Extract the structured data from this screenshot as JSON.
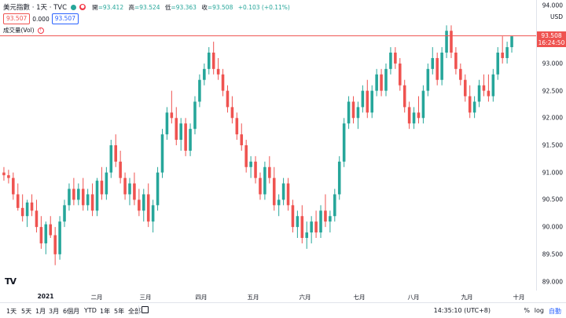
{
  "header": {
    "symbol": "美元指數 · 1天 · TVC",
    "ohlc": [
      {
        "label": "開",
        "value": "=93.412"
      },
      {
        "label": "高",
        "value": "=93.524"
      },
      {
        "label": "低",
        "value": "=93.363"
      },
      {
        "label": "收",
        "value": "=93.508"
      }
    ],
    "change": "+0.103 (+0.11%)",
    "bid": "93.507",
    "spread": "0.000",
    "ask": "93.507",
    "volume_label": "成交量(Vol)",
    "status_color": "#26a69a"
  },
  "price_axis": {
    "unit": "USD",
    "ticks": [
      "94.000",
      "93.000",
      "92.500",
      "92.000",
      "91.500",
      "91.000",
      "90.500",
      "90.000",
      "89.500",
      "89.000"
    ],
    "last_price": "93.508",
    "countdown": "16:24:50",
    "last_price_color": "#ef5350"
  },
  "time_axis": {
    "ticks": [
      "2021",
      "二月",
      "三月",
      "四月",
      "五月",
      "六月",
      "七月",
      "八月",
      "九月",
      "十月"
    ]
  },
  "bottom_bar": {
    "ranges": [
      "1天",
      "5天",
      "1月",
      "3月",
      "6個月",
      "YTD",
      "1年",
      "5年",
      "全部"
    ],
    "timestamp": "14:35:10 (UTC+8)",
    "percent": "%",
    "log": "log",
    "auto": "自動"
  },
  "colors": {
    "up": "#26a69a",
    "down": "#ef5350"
  },
  "chart_data": {
    "type": "candlestick",
    "ylim": [
      88.95,
      94.05
    ],
    "candles": [
      {
        "o": 91.0,
        "h": 91.1,
        "l": 90.85,
        "c": 90.95
      },
      {
        "o": 90.95,
        "h": 91.05,
        "l": 90.8,
        "c": 90.9
      },
      {
        "o": 90.9,
        "h": 91.0,
        "l": 90.5,
        "c": 90.6
      },
      {
        "o": 90.6,
        "h": 90.8,
        "l": 90.3,
        "c": 90.35
      },
      {
        "o": 90.35,
        "h": 90.6,
        "l": 90.1,
        "c": 90.2
      },
      {
        "o": 90.2,
        "h": 90.5,
        "l": 90.0,
        "c": 90.45
      },
      {
        "o": 90.45,
        "h": 90.6,
        "l": 90.2,
        "c": 90.3
      },
      {
        "o": 90.3,
        "h": 90.5,
        "l": 89.9,
        "c": 90.0
      },
      {
        "o": 90.0,
        "h": 90.2,
        "l": 89.6,
        "c": 89.7
      },
      {
        "o": 89.7,
        "h": 90.1,
        "l": 89.5,
        "c": 90.05
      },
      {
        "o": 90.05,
        "h": 90.2,
        "l": 89.8,
        "c": 89.85
      },
      {
        "o": 89.85,
        "h": 90.0,
        "l": 89.3,
        "c": 89.5
      },
      {
        "o": 89.5,
        "h": 90.2,
        "l": 89.4,
        "c": 90.1
      },
      {
        "o": 90.1,
        "h": 90.5,
        "l": 90.0,
        "c": 90.4
      },
      {
        "o": 90.4,
        "h": 90.8,
        "l": 90.3,
        "c": 90.7
      },
      {
        "o": 90.7,
        "h": 90.9,
        "l": 90.4,
        "c": 90.5
      },
      {
        "o": 90.5,
        "h": 90.8,
        "l": 90.4,
        "c": 90.7
      },
      {
        "o": 90.7,
        "h": 90.9,
        "l": 90.3,
        "c": 90.4
      },
      {
        "o": 90.4,
        "h": 90.7,
        "l": 90.3,
        "c": 90.6
      },
      {
        "o": 90.6,
        "h": 90.8,
        "l": 90.2,
        "c": 90.3
      },
      {
        "o": 90.3,
        "h": 90.9,
        "l": 90.2,
        "c": 90.85
      },
      {
        "o": 90.85,
        "h": 91.1,
        "l": 90.5,
        "c": 90.6
      },
      {
        "o": 90.6,
        "h": 91.1,
        "l": 90.5,
        "c": 91.0
      },
      {
        "o": 91.0,
        "h": 91.6,
        "l": 90.9,
        "c": 91.5
      },
      {
        "o": 91.5,
        "h": 91.7,
        "l": 91.1,
        "c": 91.2
      },
      {
        "o": 91.2,
        "h": 91.4,
        "l": 90.8,
        "c": 90.9
      },
      {
        "o": 90.9,
        "h": 91.0,
        "l": 90.5,
        "c": 90.6
      },
      {
        "o": 90.6,
        "h": 90.9,
        "l": 90.4,
        "c": 90.8
      },
      {
        "o": 90.8,
        "h": 91.0,
        "l": 90.4,
        "c": 90.5
      },
      {
        "o": 90.5,
        "h": 90.7,
        "l": 90.2,
        "c": 90.3
      },
      {
        "o": 90.3,
        "h": 90.7,
        "l": 90.1,
        "c": 90.6
      },
      {
        "o": 90.6,
        "h": 90.8,
        "l": 90.0,
        "c": 90.1
      },
      {
        "o": 90.1,
        "h": 90.5,
        "l": 89.9,
        "c": 90.4
      },
      {
        "o": 90.4,
        "h": 91.1,
        "l": 90.3,
        "c": 91.0
      },
      {
        "o": 91.0,
        "h": 91.8,
        "l": 90.9,
        "c": 91.7
      },
      {
        "o": 91.7,
        "h": 92.2,
        "l": 91.6,
        "c": 92.1
      },
      {
        "o": 92.1,
        "h": 92.5,
        "l": 91.9,
        "c": 92.0
      },
      {
        "o": 92.0,
        "h": 92.2,
        "l": 91.5,
        "c": 91.6
      },
      {
        "o": 91.6,
        "h": 92.0,
        "l": 91.4,
        "c": 91.9
      },
      {
        "o": 91.9,
        "h": 92.0,
        "l": 91.3,
        "c": 91.4
      },
      {
        "o": 91.4,
        "h": 91.9,
        "l": 91.3,
        "c": 91.8
      },
      {
        "o": 91.8,
        "h": 92.4,
        "l": 91.7,
        "c": 92.3
      },
      {
        "o": 92.3,
        "h": 92.8,
        "l": 92.2,
        "c": 92.7
      },
      {
        "o": 92.7,
        "h": 93.0,
        "l": 92.6,
        "c": 92.9
      },
      {
        "o": 92.9,
        "h": 93.3,
        "l": 92.8,
        "c": 93.2
      },
      {
        "o": 93.2,
        "h": 93.4,
        "l": 92.8,
        "c": 92.9
      },
      {
        "o": 92.9,
        "h": 93.1,
        "l": 92.7,
        "c": 92.8
      },
      {
        "o": 92.8,
        "h": 92.9,
        "l": 92.4,
        "c": 92.5
      },
      {
        "o": 92.5,
        "h": 92.6,
        "l": 92.1,
        "c": 92.2
      },
      {
        "o": 92.2,
        "h": 92.4,
        "l": 91.9,
        "c": 92.0
      },
      {
        "o": 92.0,
        "h": 92.1,
        "l": 91.6,
        "c": 91.7
      },
      {
        "o": 91.7,
        "h": 91.9,
        "l": 91.4,
        "c": 91.5
      },
      {
        "o": 91.5,
        "h": 91.6,
        "l": 91.0,
        "c": 91.1
      },
      {
        "o": 91.1,
        "h": 91.3,
        "l": 90.9,
        "c": 91.2
      },
      {
        "o": 91.2,
        "h": 91.3,
        "l": 90.8,
        "c": 90.9
      },
      {
        "o": 90.9,
        "h": 91.0,
        "l": 90.5,
        "c": 90.6
      },
      {
        "o": 90.6,
        "h": 91.2,
        "l": 90.5,
        "c": 91.1
      },
      {
        "o": 91.1,
        "h": 91.3,
        "l": 90.8,
        "c": 90.9
      },
      {
        "o": 90.9,
        "h": 91.1,
        "l": 90.3,
        "c": 90.4
      },
      {
        "o": 90.4,
        "h": 90.6,
        "l": 90.2,
        "c": 90.5
      },
      {
        "o": 90.5,
        "h": 90.9,
        "l": 90.4,
        "c": 90.8
      },
      {
        "o": 90.8,
        "h": 90.9,
        "l": 90.3,
        "c": 90.4
      },
      {
        "o": 90.4,
        "h": 90.5,
        "l": 89.9,
        "c": 90.0
      },
      {
        "o": 90.0,
        "h": 90.3,
        "l": 89.8,
        "c": 90.2
      },
      {
        "o": 90.2,
        "h": 90.4,
        "l": 89.7,
        "c": 89.8
      },
      {
        "o": 89.8,
        "h": 90.1,
        "l": 89.6,
        "c": 89.9
      },
      {
        "o": 89.9,
        "h": 90.2,
        "l": 89.7,
        "c": 90.1
      },
      {
        "o": 90.1,
        "h": 90.3,
        "l": 89.8,
        "c": 89.9
      },
      {
        "o": 89.9,
        "h": 90.4,
        "l": 89.8,
        "c": 90.3
      },
      {
        "o": 90.3,
        "h": 90.6,
        "l": 90.0,
        "c": 90.1
      },
      {
        "o": 90.1,
        "h": 90.3,
        "l": 89.9,
        "c": 90.2
      },
      {
        "o": 90.2,
        "h": 90.7,
        "l": 90.1,
        "c": 90.6
      },
      {
        "o": 90.6,
        "h": 91.3,
        "l": 90.5,
        "c": 91.2
      },
      {
        "o": 91.2,
        "h": 92.0,
        "l": 91.1,
        "c": 91.9
      },
      {
        "o": 91.9,
        "h": 92.4,
        "l": 91.8,
        "c": 92.3
      },
      {
        "o": 92.3,
        "h": 92.4,
        "l": 91.9,
        "c": 92.0
      },
      {
        "o": 92.0,
        "h": 92.3,
        "l": 91.8,
        "c": 92.2
      },
      {
        "o": 92.2,
        "h": 92.6,
        "l": 92.1,
        "c": 92.5
      },
      {
        "o": 92.5,
        "h": 92.7,
        "l": 92.0,
        "c": 92.1
      },
      {
        "o": 92.1,
        "h": 92.6,
        "l": 92.0,
        "c": 92.5
      },
      {
        "o": 92.5,
        "h": 92.9,
        "l": 92.4,
        "c": 92.8
      },
      {
        "o": 92.8,
        "h": 92.9,
        "l": 92.4,
        "c": 92.5
      },
      {
        "o": 92.5,
        "h": 93.0,
        "l": 92.4,
        "c": 92.9
      },
      {
        "o": 92.9,
        "h": 93.3,
        "l": 92.8,
        "c": 93.2
      },
      {
        "o": 93.2,
        "h": 93.3,
        "l": 92.9,
        "c": 93.0
      },
      {
        "o": 93.0,
        "h": 93.1,
        "l": 92.5,
        "c": 92.6
      },
      {
        "o": 92.6,
        "h": 92.7,
        "l": 92.1,
        "c": 92.2
      },
      {
        "o": 92.2,
        "h": 92.3,
        "l": 91.8,
        "c": 91.9
      },
      {
        "o": 91.9,
        "h": 92.2,
        "l": 91.8,
        "c": 92.1
      },
      {
        "o": 92.1,
        "h": 92.4,
        "l": 91.9,
        "c": 92.0
      },
      {
        "o": 92.0,
        "h": 92.6,
        "l": 91.9,
        "c": 92.5
      },
      {
        "o": 92.5,
        "h": 93.0,
        "l": 92.4,
        "c": 92.9
      },
      {
        "o": 92.9,
        "h": 93.3,
        "l": 92.8,
        "c": 93.1
      },
      {
        "o": 93.1,
        "h": 93.2,
        "l": 92.6,
        "c": 92.7
      },
      {
        "o": 92.7,
        "h": 93.3,
        "l": 92.6,
        "c": 93.2
      },
      {
        "o": 93.2,
        "h": 93.7,
        "l": 93.1,
        "c": 93.6
      },
      {
        "o": 93.6,
        "h": 93.7,
        "l": 93.1,
        "c": 93.2
      },
      {
        "o": 93.2,
        "h": 93.3,
        "l": 92.8,
        "c": 92.9
      },
      {
        "o": 92.9,
        "h": 93.0,
        "l": 92.6,
        "c": 92.7
      },
      {
        "o": 92.7,
        "h": 92.8,
        "l": 92.3,
        "c": 92.4
      },
      {
        "o": 92.4,
        "h": 92.6,
        "l": 92.0,
        "c": 92.1
      },
      {
        "o": 92.1,
        "h": 92.4,
        "l": 92.0,
        "c": 92.3
      },
      {
        "o": 92.3,
        "h": 92.7,
        "l": 92.2,
        "c": 92.6
      },
      {
        "o": 92.6,
        "h": 92.8,
        "l": 92.4,
        "c": 92.5
      },
      {
        "o": 92.5,
        "h": 92.8,
        "l": 92.3,
        "c": 92.4
      },
      {
        "o": 92.4,
        "h": 92.9,
        "l": 92.3,
        "c": 92.8
      },
      {
        "o": 92.8,
        "h": 93.3,
        "l": 92.7,
        "c": 93.2
      },
      {
        "o": 93.2,
        "h": 93.5,
        "l": 93.0,
        "c": 93.1
      },
      {
        "o": 93.1,
        "h": 93.4,
        "l": 93.0,
        "c": 93.3
      },
      {
        "o": 93.3,
        "h": 93.5,
        "l": 93.2,
        "c": 93.5
      }
    ]
  }
}
